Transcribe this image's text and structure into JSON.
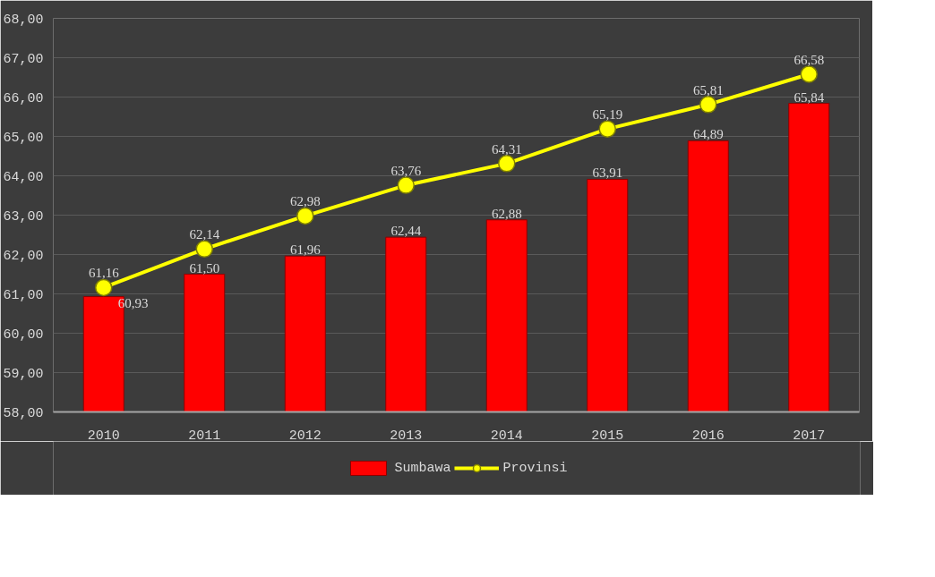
{
  "chart_data": {
    "type": "bar",
    "categories": [
      "2010",
      "2011",
      "2012",
      "2013",
      "2014",
      "2015",
      "2016",
      "2017"
    ],
    "series": [
      {
        "name": "Sumbawa",
        "color": "#ff0000",
        "values": [
          60.93,
          61.5,
          61.96,
          62.44,
          62.88,
          63.91,
          64.89,
          65.84
        ],
        "value_labels": [
          "60,93",
          "61,50",
          "61,96",
          "62,44",
          "62,88",
          "63,91",
          "64,89",
          "65,84"
        ]
      },
      {
        "name": "Provinsi",
        "type": "line",
        "color": "#ffff00",
        "marker": "circle",
        "values": [
          61.16,
          62.14,
          62.98,
          63.76,
          64.31,
          65.19,
          65.81,
          66.58
        ],
        "value_labels": [
          "61,16",
          "62,14",
          "62,98",
          "63,76",
          "64,31",
          "65,19",
          "65,81",
          "66,58"
        ]
      }
    ],
    "ylim": [
      58,
      68
    ],
    "yticks": [
      {
        "value": 58,
        "label": "58,00"
      },
      {
        "value": 59,
        "label": "59,00"
      },
      {
        "value": 60,
        "label": "60,00"
      },
      {
        "value": 61,
        "label": "61,00"
      },
      {
        "value": 62,
        "label": "62,00"
      },
      {
        "value": 63,
        "label": "63,00"
      },
      {
        "value": 64,
        "label": "64,00"
      },
      {
        "value": 65,
        "label": "65,00"
      },
      {
        "value": 66,
        "label": "66,00"
      },
      {
        "value": 67,
        "label": "67,00"
      },
      {
        "value": 68,
        "label": "68,00"
      }
    ],
    "grid": "y",
    "legend": "bottom"
  }
}
